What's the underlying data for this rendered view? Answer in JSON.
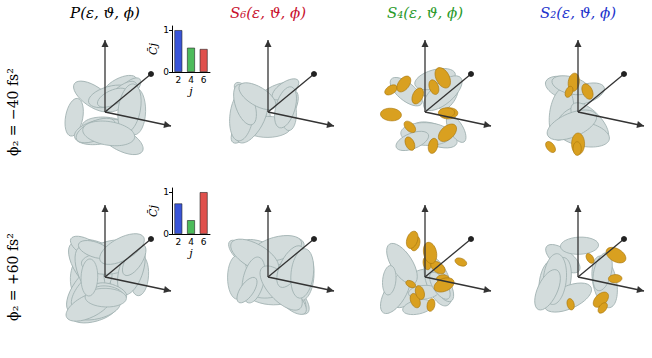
{
  "chart_data": [
    {
      "type": "bar",
      "categories": [
        "2",
        "4",
        "6"
      ],
      "values": [
        1,
        0.58,
        0.55
      ],
      "colors": [
        "#3a55d8",
        "#4cbb5a",
        "#e0504c"
      ],
      "ylim": [
        0,
        1.1
      ],
      "yticks": [
        0,
        1
      ],
      "x_label": "j",
      "y_label": "C̄j"
    },
    {
      "type": "bar",
      "categories": [
        "2",
        "4",
        "6"
      ],
      "values": [
        0.73,
        0.33,
        1
      ],
      "colors": [
        "#3a55d8",
        "#4cbb5a",
        "#e0504c"
      ],
      "ylim": [
        0,
        1.1
      ],
      "yticks": [
        0,
        1
      ],
      "x_label": "j",
      "y_label": "C̄j"
    }
  ],
  "figure": {
    "columns": [
      {
        "title": "P(ε, ϑ, ϕ)",
        "color": "#000000"
      },
      {
        "title": "S₆(ε, ϑ, ϕ)",
        "color": "#c8102e"
      },
      {
        "title": "S₄(ε, ϑ, ϕ)",
        "color": "#2a9a2a"
      },
      {
        "title": "S₂(ε, ϑ, ϕ)",
        "color": "#2233cc"
      }
    ],
    "rows": [
      "ϕ₂ = −40 fs²",
      "ϕ₂ = +60 fs²"
    ]
  }
}
